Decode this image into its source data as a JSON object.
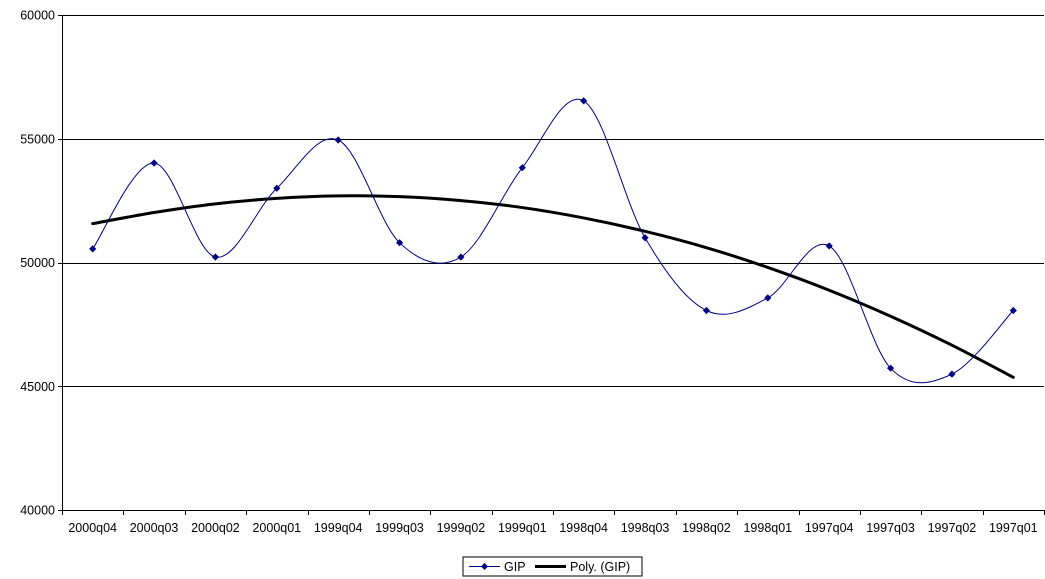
{
  "chart_data": {
    "type": "line",
    "title": "",
    "xlabel": "",
    "ylabel": "",
    "categories": [
      "2000q04",
      "2000q03",
      "2000q02",
      "2000q01",
      "1999q04",
      "1999q03",
      "1999q02",
      "1999q01",
      "1998q04",
      "1998q03",
      "1998q02",
      "1998q01",
      "1997q04",
      "1997q03",
      "1997q02",
      "1997q01"
    ],
    "ylim": [
      40000,
      60000
    ],
    "yticks": [
      40000,
      45000,
      50000,
      55000,
      60000
    ],
    "grid": true,
    "legend_placement": "bottom",
    "series": [
      {
        "name": "GIP",
        "color": "#000080",
        "marker": "diamond",
        "smooth": true,
        "values": [
          50550,
          54020,
          50220,
          53000,
          54950,
          50800,
          50220,
          53830,
          56530,
          51000,
          48060,
          48570,
          50670,
          45730,
          45490,
          48060
        ]
      },
      {
        "name": "Poly. (GIP)",
        "color": "#000000",
        "marker": "none",
        "smooth": true,
        "values": [
          51570,
          52020,
          52370,
          52590,
          52690,
          52660,
          52500,
          52220,
          51800,
          51260,
          50600,
          49800,
          48880,
          47830,
          46660,
          45360
        ]
      }
    ]
  }
}
